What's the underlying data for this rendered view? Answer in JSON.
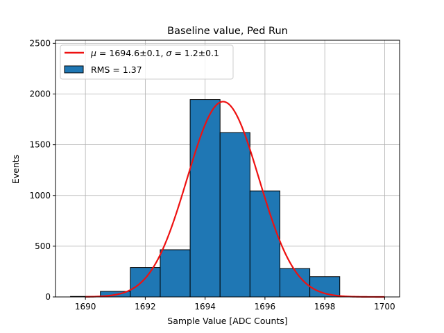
{
  "chart_data": {
    "type": "bar",
    "title": "Baseline value, Ped Run",
    "xlabel": "Sample Value [ADC Counts]",
    "ylabel": "Events",
    "xlim": [
      1689,
      1700.5
    ],
    "ylim": [
      0,
      2530
    ],
    "grid": true,
    "legend_position": "top-left",
    "xticks": [
      1690,
      1692,
      1694,
      1696,
      1698,
      1700
    ],
    "yticks": [
      0,
      500,
      1000,
      1500,
      2000,
      2500
    ],
    "bins": [
      {
        "x0": 1689.5,
        "x1": 1690.5,
        "value": 5
      },
      {
        "x0": 1690.5,
        "x1": 1691.5,
        "value": 55
      },
      {
        "x0": 1691.5,
        "x1": 1692.5,
        "value": 290
      },
      {
        "x0": 1692.5,
        "x1": 1693.5,
        "value": 465
      },
      {
        "x0": 1693.5,
        "x1": 1694.5,
        "value": 1945
      },
      {
        "x0": 1694.5,
        "x1": 1695.5,
        "value": 1620
      },
      {
        "x0": 1695.5,
        "x1": 1696.5,
        "value": 1045
      },
      {
        "x0": 1696.5,
        "x1": 1697.5,
        "value": 280
      },
      {
        "x0": 1697.5,
        "x1": 1698.5,
        "value": 200
      }
    ],
    "fit": {
      "mu": 1694.6,
      "sigma": 1.2,
      "amplitude": 1925,
      "x_range": [
        1690,
        1700
      ]
    },
    "legend": {
      "fit_label": "$\\mu = 1694.6{\\pm}0.1$, $\\sigma = 1.2{\\pm}0.1$",
      "hist_label": "RMS = 1.37"
    },
    "colors": {
      "bar": "#1f77b4",
      "bar_edge": "#000000",
      "fit": "#ee1111",
      "grid": "#b0b0b0"
    }
  }
}
